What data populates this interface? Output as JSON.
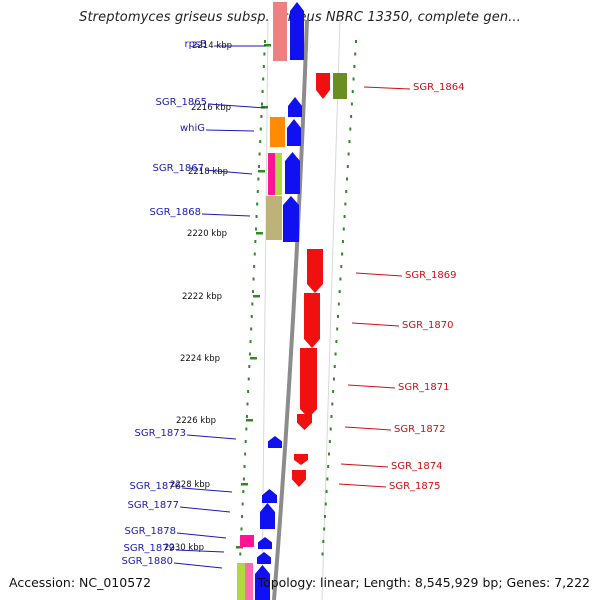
{
  "title": "Streptomyces griseus subsp. griseus NBRC 13350, complete gen...",
  "footer": {
    "accession": "Accession: NC_010572",
    "topology": "Topology: linear; Length: 8,545,929 bp; Genes: 7,222"
  },
  "colors": {
    "forward": "#1010f0",
    "reverse": "#f01010",
    "forward_label": "#1a1ab8",
    "reverse_label": "#cc1010",
    "tick": "#2e8b22",
    "backbone": "#8c8c8c"
  },
  "kbp_labels": [
    "2214 kbp",
    "2216 kbp",
    "2218 kbp",
    "2220 kbp",
    "2222 kbp",
    "2224 kbp",
    "2226 kbp",
    "2228 kbp",
    "2230 kbp"
  ],
  "forward_genes": [
    "rpsB",
    "SGR_1865",
    "whiG",
    "SGR_1867",
    "SGR_1868",
    "SGR_1873",
    "SGR_1876",
    "SGR_1877",
    "SGR_1878",
    "SGR_1879",
    "SGR_1880"
  ],
  "reverse_genes": [
    "SGR_1864",
    "SGR_1869",
    "SGR_1870",
    "SGR_1871",
    "SGR_1872",
    "SGR_1874",
    "SGR_1875"
  ]
}
